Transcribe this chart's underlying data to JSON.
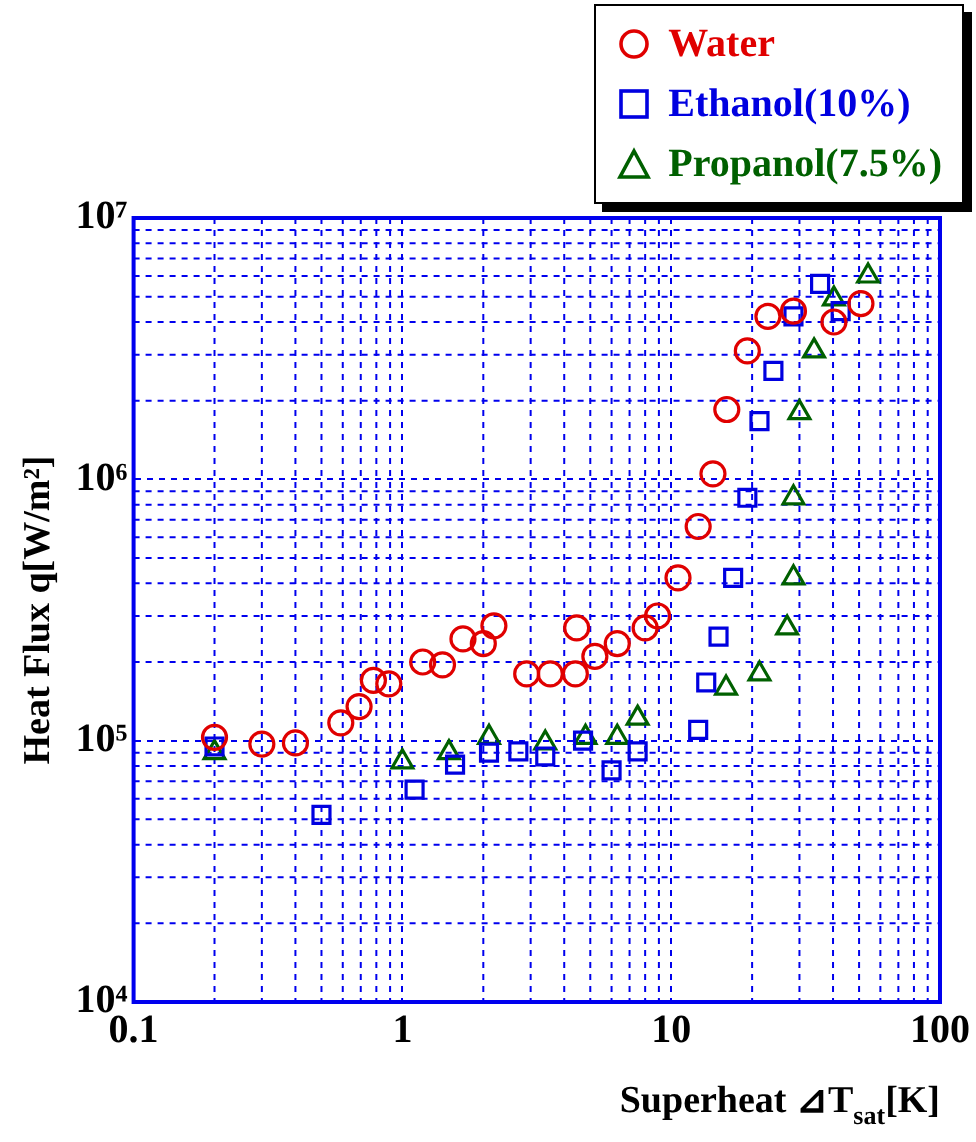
{
  "chart_data": {
    "type": "scatter",
    "xlabel": "Superheat ⊿T$_{sat}$[K]",
    "ylabel": "Heat Flux q[W/m²]",
    "log": "xy",
    "grid": true,
    "legend": "top right",
    "xlim": [
      0.1,
      100
    ],
    "xticks": [
      0.1,
      1,
      10,
      100
    ],
    "ylim": [
      10000,
      10000000
    ],
    "yticks": [
      {
        "value": 10000,
        "label": "10⁴"
      },
      {
        "value": 100000,
        "label": "10⁵"
      },
      {
        "value": 1000000,
        "label": "10⁶"
      },
      {
        "value": 10000000,
        "label": "10⁷"
      }
    ],
    "series": [
      {
        "name": "Water",
        "color": "#e00000",
        "marker": "circle",
        "x": [
          0.2,
          0.3,
          0.4,
          0.59,
          0.69,
          0.78,
          0.89,
          1.19,
          1.41,
          1.68,
          2.0,
          2.19,
          2.9,
          3.55,
          4.4,
          4.45,
          5.2,
          6.3,
          8.0,
          8.9,
          10.6,
          12.6,
          14.3,
          16.1,
          19.2,
          22.9,
          28.5,
          40.3,
          50.8
        ],
        "values": [
          103000,
          97000,
          98000,
          117000,
          135000,
          170000,
          165000,
          200000,
          195000,
          245000,
          235000,
          275000,
          180000,
          180000,
          180000,
          270000,
          210000,
          235000,
          270000,
          300000,
          420000,
          660000,
          1050000,
          1850000,
          3100000,
          4200000,
          4400000,
          4000000,
          4700000
        ]
      },
      {
        "name": "Ethanol(10%)",
        "color": "#0000e0",
        "marker": "square",
        "x": [
          0.2,
          0.5,
          1.11,
          1.57,
          2.1,
          2.7,
          3.4,
          4.7,
          6.0,
          7.5,
          12.6,
          13.5,
          15,
          17,
          19.2,
          21.3,
          24,
          28.5,
          35.8,
          42.7
        ],
        "values": [
          95000,
          52000,
          65000,
          81000,
          90000,
          91000,
          87000,
          100000,
          77000,
          91000,
          110000,
          167000,
          250000,
          420000,
          850000,
          1670000,
          2600000,
          4200000,
          5600000,
          4400000
        ]
      },
      {
        "name": "Propanol(7.5%)",
        "color": "#006000",
        "marker": "triangle",
        "x": [
          0.2,
          1.0,
          1.49,
          2.1,
          3.4,
          4.8,
          6.3,
          7.5,
          16,
          21.3,
          27,
          28.5,
          28.5,
          30,
          34,
          40.3,
          54
        ],
        "values": [
          90000,
          83000,
          90000,
          103000,
          98000,
          103000,
          103000,
          122000,
          159000,
          180000,
          270000,
          420000,
          850000,
          1800000,
          3100000,
          4900000,
          6000000
        ]
      }
    ]
  }
}
